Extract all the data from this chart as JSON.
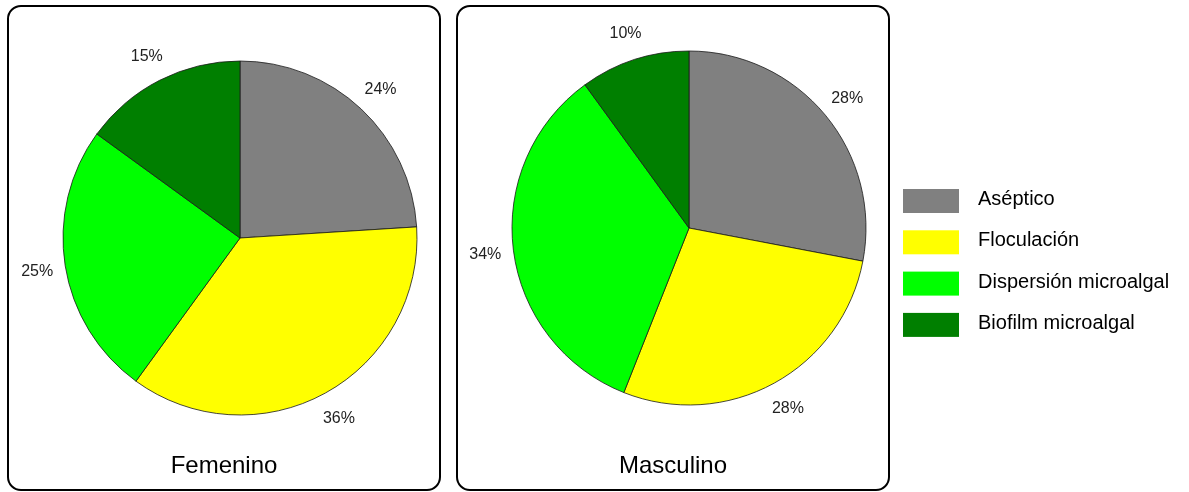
{
  "chart_data": {
    "type": "pie",
    "categories": [
      "Aséptico",
      "Floculación",
      "Dispersión microalgal",
      "Biofilm microalgal"
    ],
    "colors": [
      "#808080",
      "#ffff00",
      "#00ff00",
      "#007f00"
    ],
    "legend": "right",
    "series": [
      {
        "name": "Femenino",
        "values": [
          24,
          36,
          25,
          15
        ],
        "value_labels": [
          "24%",
          "36%",
          "25%",
          "15%"
        ]
      },
      {
        "name": "Masculino",
        "values": [
          28,
          28,
          34,
          10
        ],
        "value_labels": [
          "28%",
          "28%",
          "34%",
          "10%"
        ]
      }
    ]
  }
}
